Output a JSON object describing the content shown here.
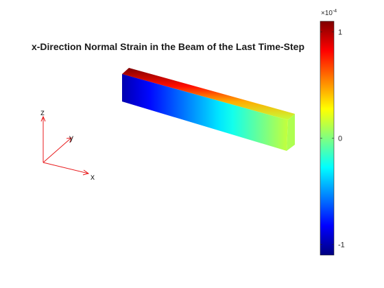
{
  "chart_data": {
    "type": "heatmap",
    "title": "x-Direction Normal Strain in the Beam of the Last Time-Step",
    "triad_labels": {
      "x": "x",
      "y": "y",
      "z": "z"
    },
    "colorbar": {
      "colormap": "jet",
      "range": [
        -1.1,
        1.1
      ],
      "ticks": [
        {
          "value": 1,
          "label": "1"
        },
        {
          "value": 0,
          "label": "0"
        },
        {
          "value": -1,
          "label": "-1"
        }
      ],
      "multiplier_base": "×10",
      "multiplier_exp": "-4"
    },
    "beam": {
      "front_face_strain_fixed_end": -1.0,
      "front_face_strain_free_end": 0.15,
      "top_face_strain_near_edge": 1.1,
      "end_face_strain": 0.1
    },
    "colors": {
      "triad": "#e8191b",
      "axis_text": "#262626"
    }
  }
}
